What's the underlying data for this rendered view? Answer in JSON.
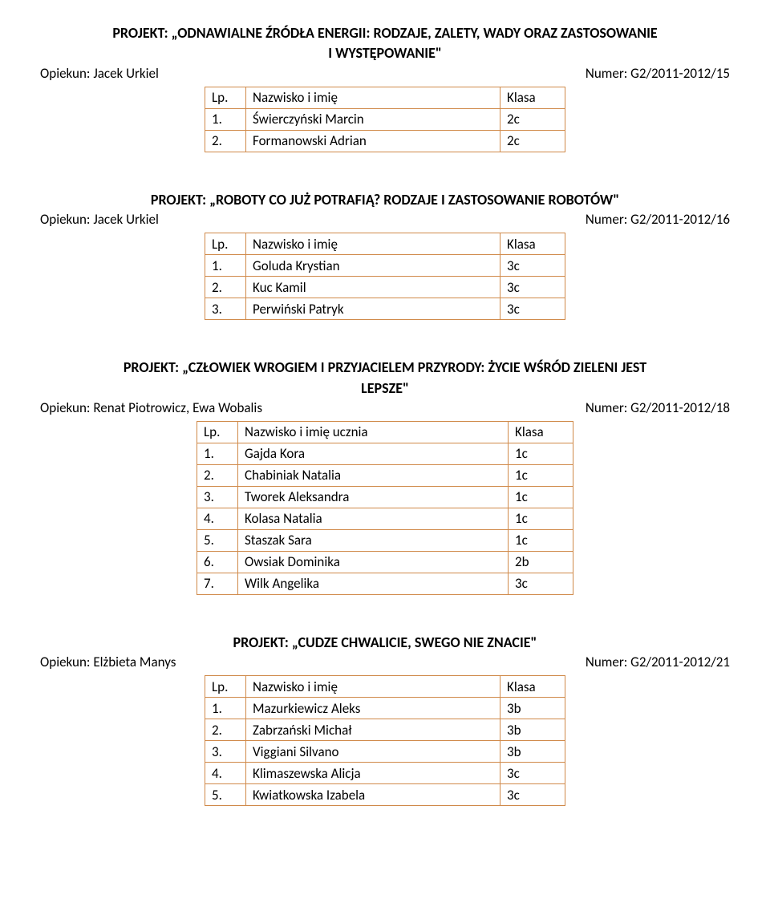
{
  "table_border_color": "#d08a4a",
  "sections": [
    {
      "title_lines": [
        "PROJEKT: „ODNAWIALNE ŹRÓDŁA ENERGII: RODZAJE, ZALETY, WADY ORAZ ZASTOSOWANIE",
        "I WYSTĘPOWANIE\""
      ],
      "opiekun": "Opiekun: Jacek Urkiel",
      "numer": "Numer: G2/2011-2012/15",
      "header": {
        "lp": "Lp.",
        "name": "Nazwisko i imię",
        "klasa": "Klasa"
      },
      "rows": [
        {
          "lp": "1.",
          "name": "Świerczyński Marcin",
          "klasa": "2c"
        },
        {
          "lp": "2.",
          "name": "Formanowski Adrian",
          "klasa": "2c"
        }
      ]
    },
    {
      "title_lines": [
        "PROJEKT: „ROBOTY CO JUŻ POTRAFIĄ? RODZAJE I ZASTOSOWANIE ROBOTÓW\""
      ],
      "opiekun": "Opiekun: Jacek Urkiel",
      "numer": "Numer: G2/2011-2012/16",
      "header": {
        "lp": "Lp.",
        "name": "Nazwisko i imię",
        "klasa": "Klasa"
      },
      "rows": [
        {
          "lp": "1.",
          "name": "Goluda Krystian",
          "klasa": "3c"
        },
        {
          "lp": "2.",
          "name": "Kuc Kamil",
          "klasa": "3c"
        },
        {
          "lp": "3.",
          "name": "Perwiński Patryk",
          "klasa": "3c"
        }
      ]
    },
    {
      "title_lines": [
        "PROJEKT: „CZŁOWIEK WROGIEM I PRZYJACIELEM PRZYRODY: ŻYCIE WŚRÓD ZIELENI JEST",
        "LEPSZE\""
      ],
      "opiekun": "Opiekun: Renat Piotrowicz, Ewa Wobalis",
      "numer": "Numer: G2/2011-2012/18",
      "header": {
        "lp": "Lp.",
        "name": "Nazwisko i imię ucznia",
        "klasa": "Klasa"
      },
      "name_wide": true,
      "rows": [
        {
          "lp": "1.",
          "name": "Gajda Kora",
          "klasa": "1c"
        },
        {
          "lp": "2.",
          "name": "Chabiniak Natalia",
          "klasa": "1c"
        },
        {
          "lp": "3.",
          "name": "Tworek Aleksandra",
          "klasa": "1c"
        },
        {
          "lp": "4.",
          "name": "Kolasa Natalia",
          "klasa": "1c"
        },
        {
          "lp": "5.",
          "name": "Staszak Sara",
          "klasa": "1c"
        },
        {
          "lp": "6.",
          "name": "Owsiak Dominika",
          "klasa": "2b"
        },
        {
          "lp": "7.",
          "name": "Wilk Angelika",
          "klasa": "3c"
        }
      ]
    },
    {
      "title_lines": [
        "PROJEKT: „CUDZE CHWALICIE, SWEGO NIE ZNACIE\""
      ],
      "opiekun": "Opiekun: Elżbieta Manys",
      "numer": "Numer: G2/2011-2012/21",
      "header": {
        "lp": "Lp.",
        "name": "Nazwisko i imię",
        "klasa": "Klasa"
      },
      "rows": [
        {
          "lp": "1.",
          "name": "Mazurkiewicz Aleks",
          "klasa": "3b"
        },
        {
          "lp": "2.",
          "name": "Zabrzański Michał",
          "klasa": "3b"
        },
        {
          "lp": "3.",
          "name": "Viggiani Silvano",
          "klasa": "3b"
        },
        {
          "lp": "4.",
          "name": "Klimaszewska Alicja",
          "klasa": "3c"
        },
        {
          "lp": "5.",
          "name": "Kwiatkowska Izabela",
          "klasa": "3c"
        }
      ]
    }
  ]
}
